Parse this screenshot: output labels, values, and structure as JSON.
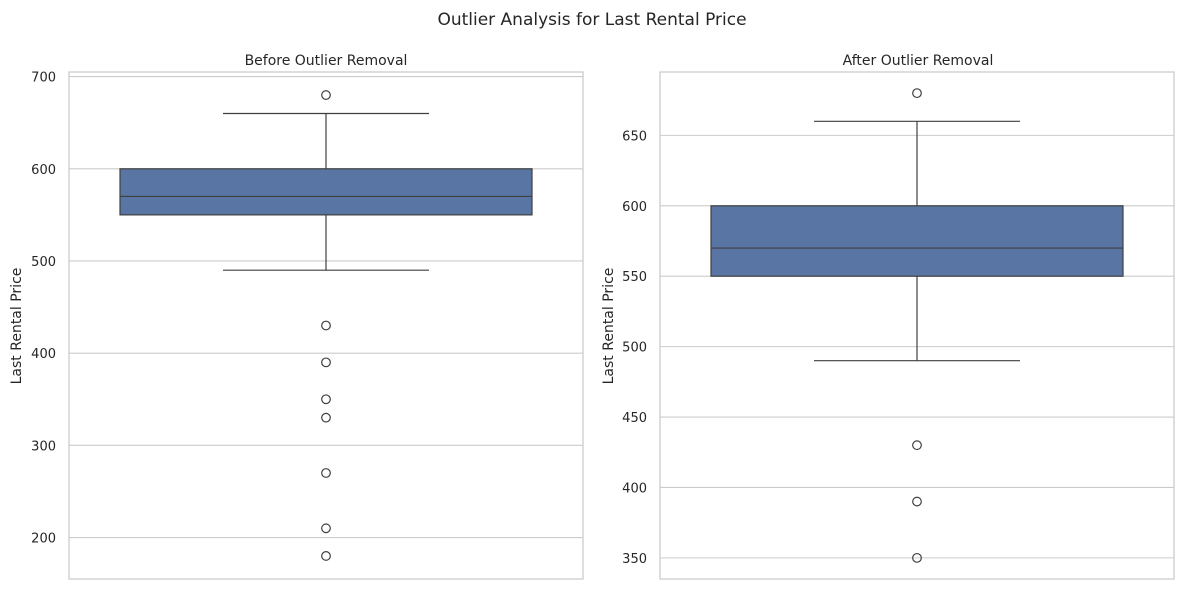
{
  "figure": {
    "suptitle": "Outlier Analysis for Last Rental Price"
  },
  "chart_data": [
    {
      "type": "box",
      "title": "Before Outlier Removal",
      "xlabel": "",
      "ylabel": "Last Rental Price",
      "ylim": [
        155,
        705
      ],
      "yticks": [
        200,
        300,
        400,
        500,
        600,
        700
      ],
      "grid": true,
      "box_color": "#5975a4",
      "line_color": "#3f3f3f",
      "stats": {
        "whisker_low": 490,
        "q1": 550,
        "median": 570,
        "q3": 600,
        "whisker_high": 660
      },
      "outliers": [
        680,
        430,
        390,
        350,
        330,
        270,
        210,
        180
      ]
    },
    {
      "type": "box",
      "title": "After Outlier Removal",
      "xlabel": "",
      "ylabel": "Last Rental Price",
      "ylim": [
        335,
        695
      ],
      "yticks": [
        350,
        400,
        450,
        500,
        550,
        600,
        650
      ],
      "grid": true,
      "box_color": "#5975a4",
      "line_color": "#3f3f3f",
      "stats": {
        "whisker_low": 490,
        "q1": 550,
        "median": 570,
        "q3": 600,
        "whisker_high": 660
      },
      "outliers": [
        680,
        430,
        390,
        350
      ]
    }
  ]
}
